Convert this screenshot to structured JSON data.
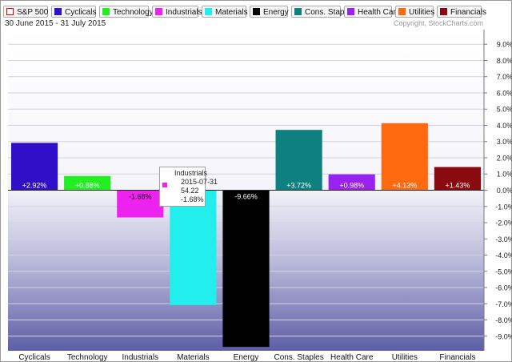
{
  "legend": [
    {
      "label": "S&P 500",
      "color": "#ffffff",
      "border": "#cc0000"
    },
    {
      "label": "Cyclicals",
      "color": "#2f10c8"
    },
    {
      "label": "Technology",
      "color": "#22ee22"
    },
    {
      "label": "Industrials",
      "color": "#ee22ee"
    },
    {
      "label": "Materials",
      "color": "#22eeee"
    },
    {
      "label": "Energy",
      "color": "#000000"
    },
    {
      "label": "Cons. Staples",
      "color": "#0f8080"
    },
    {
      "label": "Health Care",
      "color": "#9a22ee"
    },
    {
      "label": "Utilities",
      "color": "#ff6a10"
    },
    {
      "label": "Financials",
      "color": "#8a0a10"
    }
  ],
  "header": {
    "date_range": "30 June 2015 - 31 July 2015",
    "copyright": "Copyright, StockCharts.com"
  },
  "tooltip": {
    "name": "Industrials",
    "date": "2015-07-31",
    "value": "54.22",
    "change": "-1.68%",
    "color": "#ee22ee"
  },
  "chart_data": {
    "type": "bar",
    "categories": [
      "Cyclicals",
      "Technology",
      "Industrials",
      "Materials",
      "Energy",
      "Cons. Staples",
      "Health Care",
      "Utilities",
      "Financials"
    ],
    "values": [
      2.92,
      0.88,
      -1.68,
      -7.08,
      -9.66,
      3.72,
      0.98,
      4.13,
      1.43
    ],
    "labels": [
      "+2.92%",
      "+0.88%",
      "-1.68%",
      "",
      "-9.66%",
      "+3.72%",
      "+0.98%",
      "+4.13%",
      "+1.43%"
    ],
    "colors": [
      "#2f10c8",
      "#22ee22",
      "#ee22ee",
      "#22eeee",
      "#000000",
      "#0f8080",
      "#9a22ee",
      "#ff6a10",
      "#8a0a10"
    ],
    "ylim": [
      -9.9,
      9.9
    ],
    "yticks": [
      {
        "v": 9,
        "t": "9.0%"
      },
      {
        "v": 8,
        "t": "8.0%"
      },
      {
        "v": 7,
        "t": "7.0%"
      },
      {
        "v": 6,
        "t": "6.0%"
      },
      {
        "v": 5,
        "t": "5.0%"
      },
      {
        "v": 4,
        "t": "4.0%"
      },
      {
        "v": 3,
        "t": "3.0%"
      },
      {
        "v": 2,
        "t": "2.0%"
      },
      {
        "v": 1,
        "t": "1.0%"
      },
      {
        "v": 0,
        "t": "0.0%"
      },
      {
        "v": -1,
        "t": "-1.0%"
      },
      {
        "v": -2,
        "t": "-2.0%"
      },
      {
        "v": -3,
        "t": "-3.0%"
      },
      {
        "v": -4,
        "t": "-4.0%"
      },
      {
        "v": -5,
        "t": "-5.0%"
      },
      {
        "v": -6,
        "t": "-6.0%"
      },
      {
        "v": -7,
        "t": "-7.0%"
      },
      {
        "v": -8,
        "t": "-8.0%"
      },
      {
        "v": -9,
        "t": "-9.0%"
      }
    ],
    "grid": true,
    "xlabel": "",
    "ylabel": ""
  }
}
